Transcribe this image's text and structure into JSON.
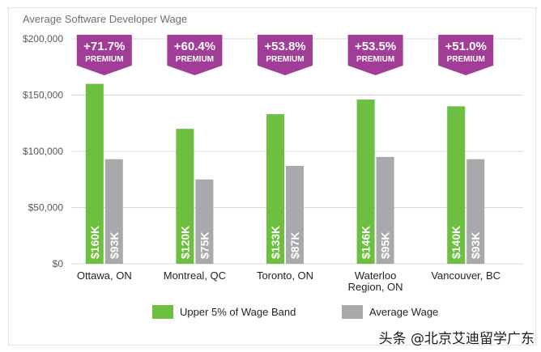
{
  "chart_data": {
    "type": "bar",
    "title": "Average Software Developer Wage",
    "xlabel": "",
    "ylabel": "",
    "ylim": [
      0,
      200000
    ],
    "yticks": [
      0,
      50000,
      100000,
      150000,
      200000
    ],
    "ytick_labels": [
      "$0",
      "$50,000",
      "$100,000",
      "$150,000",
      "$200,000"
    ],
    "grid": true,
    "legend_position": "bottom",
    "categories": [
      "Ottawa, ON",
      "Montreal, QC",
      "Toronto, ON",
      "Waterloo Region, ON",
      "Vancouver, BC"
    ],
    "category_lines": [
      [
        "Ottawa, ON"
      ],
      [
        "Montreal, QC"
      ],
      [
        "Toronto, ON"
      ],
      [
        "Waterloo",
        "Region, ON"
      ],
      [
        "Vancouver, BC"
      ]
    ],
    "series": [
      {
        "name": "Upper 5% of Wage Band",
        "values": [
          160000,
          120000,
          133000,
          146000,
          140000
        ],
        "labels": [
          "$160K",
          "$120K",
          "$133K",
          "$146K",
          "$140K"
        ],
        "color": "#6cbf3f"
      },
      {
        "name": "Average Wage",
        "values": [
          93000,
          75000,
          87000,
          95000,
          93000
        ],
        "labels": [
          "$93K",
          "$75K",
          "$87K",
          "$95K",
          "$93K"
        ],
        "color": "#a7a9ac"
      }
    ],
    "annotations": [
      {
        "category": "Ottawa, ON",
        "value": "+71.7%",
        "caption": "PREMIUM"
      },
      {
        "category": "Montreal, QC",
        "value": "+60.4%",
        "caption": "PREMIUM"
      },
      {
        "category": "Toronto, ON",
        "value": "+53.8%",
        "caption": "PREMIUM"
      },
      {
        "category": "Waterloo Region, ON",
        "value": "+53.5%",
        "caption": "PREMIUM"
      },
      {
        "category": "Vancouver, BC",
        "value": "+51.0%",
        "caption": "PREMIUM"
      }
    ],
    "annotation_color": "#a23d97"
  },
  "watermark": "头条 @北京艾迪留学广东"
}
